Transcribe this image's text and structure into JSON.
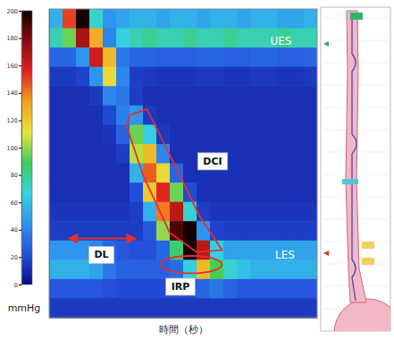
{
  "chart_data": {
    "type": "heatmap",
    "x_label": "時間（秒）",
    "tick_labels": false,
    "colorbar": {
      "label": "mmHg",
      "range": [
        0,
        200
      ],
      "ticks": [
        0,
        20,
        40,
        60,
        80,
        100,
        120,
        140,
        160,
        180,
        200
      ]
    },
    "annotations": [
      "UES",
      "DCI",
      "DL",
      "LES",
      "IRP"
    ],
    "cells": [
      [
        55,
        150,
        200,
        70,
        45,
        50,
        55,
        55,
        50,
        55,
        55,
        50,
        55,
        55,
        50,
        55,
        55,
        50,
        50,
        55
      ],
      [
        75,
        95,
        170,
        130,
        40,
        65,
        75,
        80,
        75,
        75,
        80,
        75,
        75,
        80,
        75,
        75,
        75,
        80,
        75,
        75
      ],
      [
        30,
        30,
        45,
        160,
        125,
        35,
        30,
        30,
        28,
        28,
        28,
        30,
        30,
        28,
        28,
        30,
        30,
        28,
        28,
        30
      ],
      [
        15,
        15,
        18,
        45,
        115,
        40,
        16,
        15,
        14,
        14,
        14,
        15,
        15,
        14,
        14,
        15,
        15,
        14,
        14,
        15
      ],
      [
        12,
        12,
        12,
        15,
        40,
        35,
        16,
        12,
        12,
        12,
        12,
        12,
        12,
        12,
        12,
        12,
        12,
        12,
        12,
        12
      ],
      [
        12,
        12,
        12,
        12,
        20,
        38,
        45,
        15,
        12,
        12,
        12,
        12,
        12,
        12,
        12,
        12,
        12,
        12,
        12,
        12
      ],
      [
        12,
        12,
        12,
        12,
        14,
        28,
        95,
        65,
        15,
        12,
        12,
        12,
        12,
        12,
        12,
        12,
        12,
        12,
        12,
        12
      ],
      [
        12,
        12,
        12,
        12,
        12,
        16,
        105,
        125,
        40,
        12,
        12,
        12,
        12,
        12,
        12,
        12,
        12,
        12,
        12,
        12
      ],
      [
        12,
        12,
        12,
        12,
        12,
        12,
        55,
        145,
        115,
        30,
        12,
        12,
        12,
        12,
        12,
        12,
        12,
        12,
        12,
        12
      ],
      [
        12,
        12,
        12,
        12,
        12,
        12,
        22,
        120,
        155,
        95,
        20,
        12,
        12,
        12,
        12,
        12,
        12,
        12,
        12,
        12
      ],
      [
        14,
        14,
        14,
        14,
        14,
        14,
        16,
        55,
        140,
        165,
        70,
        16,
        14,
        14,
        14,
        14,
        14,
        14,
        14,
        14
      ],
      [
        16,
        16,
        16,
        16,
        16,
        16,
        16,
        25,
        100,
        190,
        200,
        45,
        18,
        16,
        16,
        16,
        16,
        16,
        16,
        16
      ],
      [
        45,
        45,
        45,
        40,
        30,
        25,
        22,
        22,
        30,
        85,
        200,
        165,
        65,
        50,
        50,
        50,
        50,
        50,
        50,
        50
      ],
      [
        55,
        55,
        55,
        50,
        35,
        28,
        28,
        28,
        28,
        32,
        65,
        125,
        90,
        70,
        60,
        55,
        55,
        55,
        55,
        55
      ],
      [
        25,
        25,
        25,
        25,
        22,
        20,
        20,
        20,
        20,
        20,
        22,
        30,
        35,
        30,
        25,
        25,
        25,
        25,
        25,
        25
      ],
      [
        15,
        15,
        15,
        15,
        15,
        15,
        15,
        15,
        15,
        15,
        15,
        15,
        15,
        15,
        15,
        15,
        15,
        15,
        15,
        15
      ]
    ]
  }
}
